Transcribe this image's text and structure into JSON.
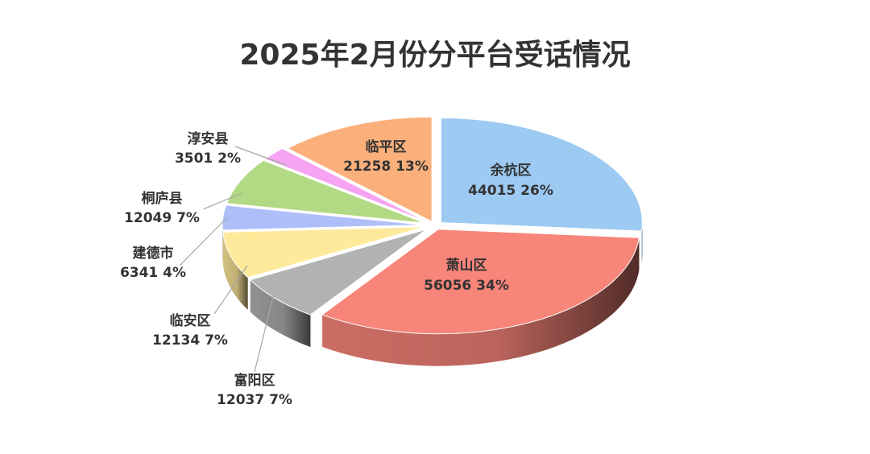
{
  "chart_data": {
    "type": "pie",
    "title": "2025年2月份分平台受话情况",
    "categories": [
      "余杭区",
      "萧山区",
      "富阳区",
      "临安区",
      "建德市",
      "桐庐县",
      "淳安县",
      "临平区"
    ],
    "values": [
      44015,
      56056,
      12037,
      12134,
      6341,
      12049,
      3501,
      21258
    ],
    "percent_labels": [
      "26%",
      "34%",
      "7%",
      "7%",
      "4%",
      "7%",
      "2%",
      "13%"
    ],
    "colors": [
      "#9ccaf2",
      "#f8857a",
      "#b2b2b2",
      "#ffe99a",
      "#aebef9",
      "#b2d983",
      "#f5a3f2",
      "#fbb07c"
    ],
    "style": "3d-exploded"
  }
}
